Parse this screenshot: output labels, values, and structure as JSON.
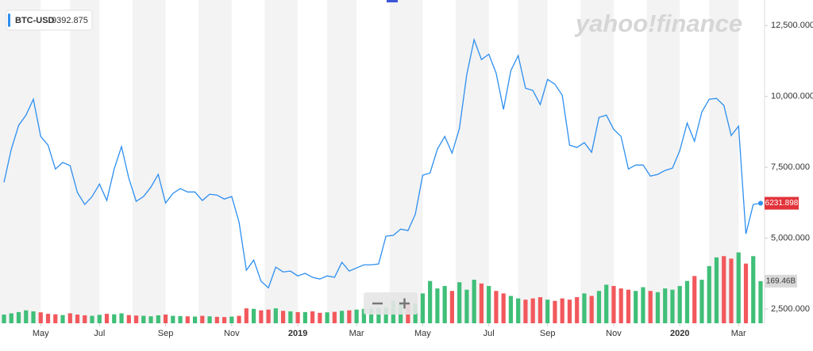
{
  "chart_data": {
    "type": "line",
    "watermark": "yahoo!finance",
    "symbol": "BTC-USD",
    "legend_value": 9392.875,
    "categories": [
      null,
      null,
      null,
      null,
      null,
      "May",
      null,
      null,
      null,
      null,
      null,
      null,
      null,
      "Jul",
      null,
      null,
      null,
      null,
      null,
      null,
      null,
      null,
      "Sep",
      null,
      null,
      null,
      null,
      null,
      null,
      null,
      null,
      "Nov",
      null,
      null,
      null,
      null,
      null,
      null,
      null,
      null,
      "2019",
      null,
      null,
      null,
      null,
      null,
      null,
      null,
      "Mar",
      null,
      null,
      null,
      null,
      null,
      null,
      null,
      null,
      "May",
      null,
      null,
      null,
      null,
      null,
      null,
      null,
      null,
      "Jul",
      null,
      null,
      null,
      null,
      null,
      null,
      null,
      "Sep",
      null,
      null,
      null,
      null,
      null,
      null,
      null,
      null,
      "Nov",
      null,
      null,
      null,
      null,
      null,
      null,
      null,
      null,
      "2020",
      null,
      null,
      null,
      null,
      null,
      null,
      null,
      "Mar",
      null,
      null,
      null
    ],
    "series": [
      {
        "name": "BTC-USD",
        "color": "#2d8ff0",
        "values": [
          6970,
          8140,
          8980,
          9340,
          9900,
          8590,
          8280,
          7440,
          7670,
          7560,
          6610,
          6190,
          6470,
          6910,
          6330,
          7440,
          8230,
          7110,
          6300,
          6470,
          6800,
          7250,
          6240,
          6580,
          6750,
          6630,
          6630,
          6330,
          6550,
          6520,
          6380,
          6470,
          5570,
          3870,
          4230,
          3480,
          3250,
          3980,
          3810,
          3840,
          3670,
          3760,
          3620,
          3560,
          3670,
          3620,
          4150,
          3840,
          3950,
          4060,
          4060,
          4090,
          5070,
          5100,
          5320,
          5270,
          5850,
          7220,
          7300,
          8140,
          8590,
          8000,
          8870,
          10770,
          12000,
          11300,
          11490,
          10820,
          9540,
          10910,
          11440,
          10290,
          10210,
          9710,
          10600,
          10430,
          10040,
          8280,
          8200,
          8370,
          8030,
          9260,
          9340,
          8840,
          8590,
          7440,
          7580,
          7580,
          7190,
          7250,
          7390,
          7470,
          8090,
          9060,
          8420,
          9450,
          9900,
          9930,
          9680,
          8620,
          8950,
          5150,
          6190,
          6231.898
        ]
      },
      {
        "name": "Volume",
        "axis": "y2",
        "up_color": "#3fbf78",
        "down_color": "#f2585c",
        "values": [
          35,
          40,
          45,
          52,
          48,
          44,
          38,
          36,
          33,
          40,
          35,
          32,
          30,
          34,
          38,
          36,
          40,
          33,
          31,
          30,
          28,
          32,
          35,
          30,
          29,
          28,
          27,
          30,
          28,
          26,
          25,
          27,
          30,
          60,
          58,
          52,
          55,
          60,
          50,
          48,
          45,
          45,
          48,
          42,
          44,
          46,
          50,
          52,
          55,
          58,
          60,
          62,
          65,
          90,
          85,
          80,
          80,
          120,
          170,
          140,
          150,
          130,
          165,
          135,
          175,
          160,
          150,
          130,
          120,
          110,
          100,
          95,
          100,
          105,
          95,
          90,
          100,
          95,
          105,
          120,
          110,
          130,
          155,
          150,
          140,
          135,
          130,
          145,
          130,
          125,
          140,
          135,
          150,
          170,
          190,
          175,
          230,
          265,
          270,
          260,
          285,
          240,
          270,
          169.46
        ],
        "value_labels": [
          null,
          null,
          null,
          null,
          null,
          null,
          null,
          null,
          null,
          null,
          null,
          null,
          null,
          null,
          null,
          null,
          null,
          null,
          null,
          null,
          null,
          null,
          null,
          null,
          null,
          null,
          null,
          null,
          null,
          null,
          null,
          null,
          null,
          null,
          null,
          null,
          null,
          null,
          null,
          null,
          null,
          null,
          null,
          null,
          null,
          null,
          null,
          null,
          null,
          null,
          null,
          null,
          null,
          null,
          null,
          null,
          null,
          null,
          null,
          null,
          null,
          null,
          null,
          null,
          null,
          null,
          null,
          null,
          null,
          null,
          null,
          null,
          null,
          null,
          null,
          null,
          null,
          null,
          null,
          null,
          null,
          null,
          null,
          null,
          null,
          null,
          null,
          null,
          null,
          null,
          null,
          null,
          null,
          null,
          null,
          null,
          null,
          null,
          null,
          null,
          null,
          null,
          null,
          "169.46B"
        ]
      }
    ],
    "ylim": [
      2000,
      13400
    ],
    "yticks": [
      {
        "value": 2500,
        "label": "2,500.000"
      },
      {
        "value": 5000,
        "label": "5,000.000"
      },
      {
        "value": 7500,
        "label": "7,500.000"
      },
      {
        "value": 10000,
        "label": "10,000.000"
      },
      {
        "value": 12500,
        "label": "12,500.000"
      }
    ],
    "y2lim": [
      0,
      1300
    ]
  }
}
